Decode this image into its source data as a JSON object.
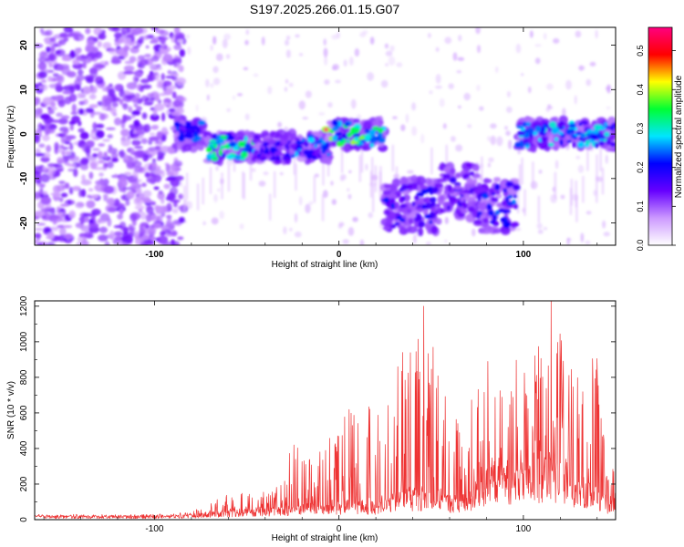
{
  "figure": {
    "title": "S197.2025.266.01.15.G07"
  },
  "chart_data": [
    {
      "type": "heatmap",
      "title": "S197.2025.266.01.15.G07",
      "xlabel": "Height of straight line (km)",
      "ylabel": "Frequency (Hz)",
      "xlim": [
        -165,
        150
      ],
      "ylim": [
        -25,
        24
      ],
      "xticks": [
        -100,
        0,
        100
      ],
      "yticks": [
        -20,
        -10,
        0,
        10,
        20
      ],
      "colorbar": {
        "label": "Normalized spectral amplitude",
        "range": [
          0,
          0.56
        ],
        "ticks": [
          "0.0",
          "0.1",
          "0.2",
          "0.3",
          "0.4",
          "0.5"
        ],
        "colormap": [
          "#ffffff",
          "#cc99ff",
          "#6600ff",
          "#0000ff",
          "#00e5ff",
          "#00ff33",
          "#ffff00",
          "#ff0000",
          "#ff0080"
        ]
      },
      "noise_region_x": [
        -165,
        -88
      ],
      "ridge": [
        {
          "x": [
            -88,
            -72
          ],
          "freq": 0,
          "amplitude": 0.25
        },
        {
          "x": [
            -72,
            -45
          ],
          "freq": -3,
          "amplitude": 0.35
        },
        {
          "x": [
            -45,
            -25
          ],
          "freq": -3,
          "amplitude": 0.2
        },
        {
          "x": [
            -25,
            -5
          ],
          "freq": -3,
          "amplitude": 0.28
        },
        {
          "x": [
            -5,
            25
          ],
          "freq": 0,
          "amplitude": 0.4
        },
        {
          "x": [
            25,
            55
          ],
          "freq": -16,
          "amplitude": 0.22
        },
        {
          "x": [
            55,
            75
          ],
          "freq": -13,
          "amplitude": 0.18
        },
        {
          "x": [
            75,
            97
          ],
          "freq": -16,
          "amplitude": 0.25
        },
        {
          "x": [
            97,
            150
          ],
          "freq": 0,
          "amplitude": 0.3
        }
      ],
      "peak": {
        "x": -7,
        "freq": 1,
        "amplitude": 0.56
      }
    },
    {
      "type": "line",
      "xlabel": "Height of straight line (km)",
      "ylabel": "SNR (10 * v/v)",
      "xlim": [
        -165,
        150
      ],
      "ylim": [
        0,
        1230
      ],
      "xticks": [
        -100,
        0,
        100
      ],
      "yticks": [
        0,
        200,
        400,
        600,
        800,
        1000,
        1200
      ],
      "color": "#ee3333",
      "series": [
        {
          "name": "SNR",
          "x": [
            -165,
            -130,
            -100,
            -90,
            -80,
            -70,
            -60,
            -50,
            -40,
            -30,
            -25,
            -20,
            -15,
            -10,
            -5,
            0,
            5,
            10,
            15,
            20,
            25,
            30,
            35,
            40,
            45,
            50,
            55,
            60,
            65,
            70,
            75,
            80,
            85,
            90,
            95,
            100,
            105,
            110,
            115,
            120,
            125,
            130,
            135,
            140,
            145,
            150
          ],
          "upper": [
            30,
            30,
            30,
            35,
            50,
            100,
            150,
            160,
            160,
            220,
            500,
            420,
            430,
            380,
            460,
            500,
            640,
            600,
            650,
            720,
            760,
            800,
            980,
            1020,
            1040,
            1000,
            1050,
            600,
            600,
            640,
            880,
            900,
            1000,
            980,
            900,
            950,
            920,
            1050,
            1000,
            1050,
            900,
            950,
            1000,
            920,
            280,
            300
          ],
          "baseline": [
            15,
            15,
            15,
            15,
            20,
            30,
            35,
            40,
            45,
            45,
            60,
            60,
            60,
            60,
            60,
            65,
            70,
            70,
            70,
            70,
            80,
            100,
            120,
            120,
            120,
            110,
            110,
            90,
            90,
            90,
            140,
            180,
            220,
            220,
            200,
            200,
            200,
            220,
            220,
            200,
            180,
            160,
            140,
            130,
            80,
            90
          ],
          "peaks": [
            {
              "x": 46,
              "y": 1200
            },
            {
              "x": 115,
              "y": 1230
            }
          ]
        }
      ]
    }
  ]
}
